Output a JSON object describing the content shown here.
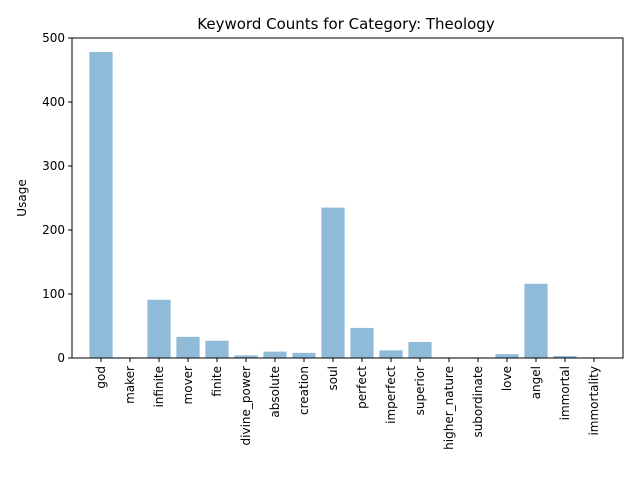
{
  "chart_data": {
    "type": "bar",
    "title": "Keyword Counts for Category: Theology",
    "xlabel": "",
    "ylabel": "Usage",
    "ylim": [
      0,
      500
    ],
    "yticks": [
      0,
      100,
      200,
      300,
      400,
      500
    ],
    "categories": [
      "god",
      "maker",
      "infinite",
      "mover",
      "finite",
      "divine_power",
      "absolute",
      "creation",
      "soul",
      "perfect",
      "imperfect",
      "superior",
      "higher_nature",
      "subordinate",
      "love",
      "angel",
      "immortal",
      "immortality"
    ],
    "values": [
      478,
      1,
      91,
      33,
      27,
      4,
      10,
      8,
      235,
      47,
      12,
      25,
      1,
      1,
      6,
      116,
      3,
      1
    ],
    "bar_color": "#1f77b4",
    "grid": false,
    "legend": "none"
  }
}
